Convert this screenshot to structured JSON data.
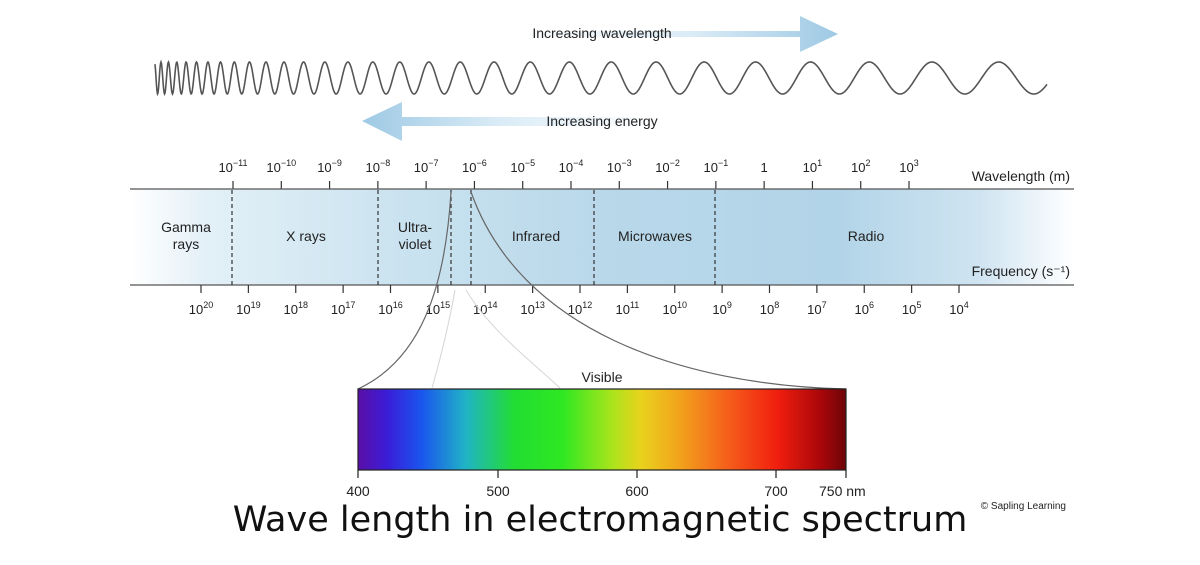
{
  "arrows": {
    "wavelength": "Increasing wavelength",
    "energy": "Increasing energy"
  },
  "scale": {
    "wavelength_label": "Wavelength (m)",
    "frequency_label": "Frequency (s⁻¹)",
    "wavelength_ticks": [
      {
        "base": "10",
        "exp": "−11"
      },
      {
        "base": "10",
        "exp": "−10"
      },
      {
        "base": "10",
        "exp": "−9"
      },
      {
        "base": "10",
        "exp": "−8"
      },
      {
        "base": "10",
        "exp": "−7"
      },
      {
        "base": "10",
        "exp": "−6"
      },
      {
        "base": "10",
        "exp": "−5"
      },
      {
        "base": "10",
        "exp": "−4"
      },
      {
        "base": "10",
        "exp": "−3"
      },
      {
        "base": "10",
        "exp": "−2"
      },
      {
        "base": "10",
        "exp": "−1"
      },
      {
        "base": "1",
        "exp": ""
      },
      {
        "base": "10",
        "exp": "1"
      },
      {
        "base": "10",
        "exp": "2"
      },
      {
        "base": "10",
        "exp": "3"
      }
    ],
    "frequency_ticks": [
      {
        "base": "10",
        "exp": "20"
      },
      {
        "base": "10",
        "exp": "19"
      },
      {
        "base": "10",
        "exp": "18"
      },
      {
        "base": "10",
        "exp": "17"
      },
      {
        "base": "10",
        "exp": "16"
      },
      {
        "base": "10",
        "exp": "15"
      },
      {
        "base": "10",
        "exp": "14"
      },
      {
        "base": "10",
        "exp": "13"
      },
      {
        "base": "10",
        "exp": "12"
      },
      {
        "base": "10",
        "exp": "11"
      },
      {
        "base": "10",
        "exp": "10"
      },
      {
        "base": "10",
        "exp": "9"
      },
      {
        "base": "10",
        "exp": "8"
      },
      {
        "base": "10",
        "exp": "7"
      },
      {
        "base": "10",
        "exp": "6"
      },
      {
        "base": "10",
        "exp": "5"
      },
      {
        "base": "10",
        "exp": "4"
      }
    ]
  },
  "regions": {
    "gamma_line1": "Gamma",
    "gamma_line2": "rays",
    "xrays": "X rays",
    "uv_line1": "Ultra-",
    "uv_line2": "violet",
    "infrared": "Infrared",
    "microwaves": "Microwaves",
    "radio": "Radio"
  },
  "visible": {
    "label": "Visible",
    "ticks": [
      "400",
      "500",
      "600",
      "700",
      "750 nm"
    ]
  },
  "credit": "© Sapling Learning",
  "caption": "Wave length in electromagnetic spectrum",
  "colors": {
    "band_fill": "#bcdcec",
    "arrow": "#a8cfe6",
    "wave": "#555555"
  }
}
